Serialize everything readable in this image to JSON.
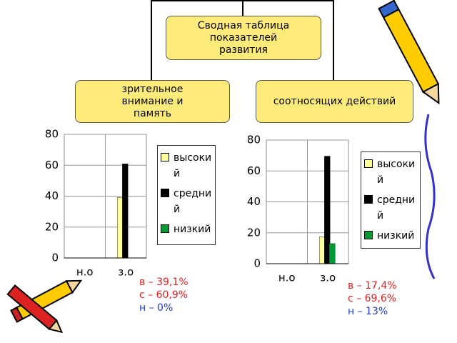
{
  "diagram": {
    "top": "Сводная таблица показателей развития",
    "left": "зрительное внимание и память",
    "right": "соотносящих действий"
  },
  "chart_data": [
    {
      "type": "bar",
      "categories": [
        "н.о",
        "з.о"
      ],
      "series": [
        {
          "name": "высокий",
          "color": "#ffff99",
          "values": [
            null,
            39.1
          ]
        },
        {
          "name": "средний",
          "color": "#000000",
          "values": [
            null,
            60.9
          ]
        },
        {
          "name": "низкий",
          "color": "#009933",
          "values": [
            null,
            0
          ]
        }
      ],
      "ylim": [
        0,
        80
      ],
      "yticks": [
        0,
        20,
        40,
        60,
        80
      ],
      "grid": true,
      "annotations": [
        "в – 39,1%",
        "с – 60,9%",
        "н – 0%"
      ]
    },
    {
      "type": "bar",
      "categories": [
        "н.о",
        "з.о"
      ],
      "series": [
        {
          "name": "высокий",
          "color": "#ffff99",
          "values": [
            null,
            17.4
          ]
        },
        {
          "name": "средний",
          "color": "#000000",
          "values": [
            null,
            69.6
          ]
        },
        {
          "name": "низкий",
          "color": "#009933",
          "values": [
            null,
            13
          ]
        }
      ],
      "ylim": [
        0,
        80
      ],
      "yticks": [
        0,
        20,
        40,
        60,
        80
      ],
      "grid": true,
      "annotations": [
        "в – 17,4%",
        "с – 69,6%",
        "н – 13%"
      ]
    }
  ]
}
